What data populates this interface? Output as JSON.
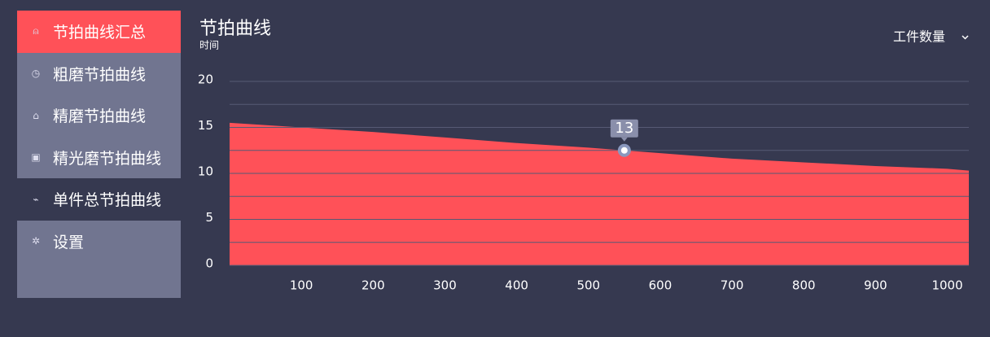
{
  "sidebar": {
    "items": [
      {
        "label": "节拍曲线汇总"
      },
      {
        "label": "粗磨节拍曲线"
      },
      {
        "label": "精磨节拍曲线"
      },
      {
        "label": "精光磨节拍曲线"
      },
      {
        "label": "单件总节拍曲线"
      },
      {
        "label": "设置"
      }
    ]
  },
  "dropdown": {
    "label": "工件数量"
  },
  "chart_data": {
    "type": "area",
    "title": "节拍曲线",
    "y_label": "时间",
    "x": [
      0,
      100,
      200,
      300,
      400,
      500,
      600,
      700,
      800,
      900,
      1000,
      1030
    ],
    "series": [
      {
        "color": "#ff5158",
        "values": [
          15.5,
          15.0,
          14.5,
          13.9,
          13.3,
          12.8,
          12.2,
          11.6,
          11.2,
          10.8,
          10.5,
          10.3
        ]
      }
    ],
    "xlim": [
      0,
      1030
    ],
    "xticks": [
      100,
      200,
      300,
      400,
      500,
      600,
      700,
      800,
      900,
      1000
    ],
    "ylim": [
      0,
      20
    ],
    "yticks": [
      0,
      5,
      10,
      15,
      20
    ],
    "grid": true,
    "minor_grid": [
      2.5,
      7.5,
      12.5,
      17.5
    ],
    "marker": {
      "x": 550,
      "value": 12.5,
      "label": "13"
    }
  }
}
